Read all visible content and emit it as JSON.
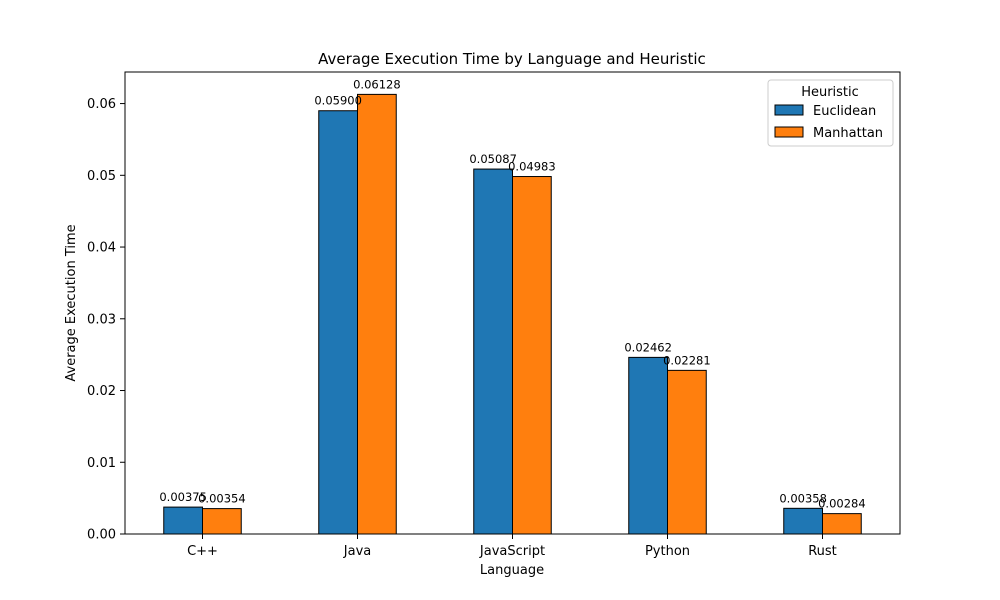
{
  "chart_data": {
    "type": "bar",
    "title": "Average Execution Time by Language and Heuristic",
    "xlabel": "Language",
    "ylabel": "Average Execution Time",
    "categories": [
      "C++",
      "Java",
      "JavaScript",
      "Python",
      "Rust"
    ],
    "series": [
      {
        "name": "Euclidean",
        "color": "#1f77b4",
        "values": [
          0.00375,
          0.059,
          0.05087,
          0.02462,
          0.00358
        ],
        "labels": [
          "0.00375",
          "0.05900",
          "0.05087",
          "0.02462",
          "0.00358"
        ]
      },
      {
        "name": "Manhattan",
        "color": "#ff7f0e",
        "values": [
          0.00354,
          0.06128,
          0.04983,
          0.02281,
          0.00284
        ],
        "labels": [
          "0.00354",
          "0.06128",
          "0.04983",
          "0.02281",
          "0.00284"
        ]
      }
    ],
    "ylim": [
      0,
      0.0644
    ],
    "yticks": [
      0.0,
      0.01,
      0.02,
      0.03,
      0.04,
      0.05,
      0.06
    ],
    "ytick_labels": [
      "0.00",
      "0.01",
      "0.02",
      "0.03",
      "0.04",
      "0.05",
      "0.06"
    ],
    "grid": false,
    "legend": {
      "title": "Heuristic",
      "position": "top-right"
    }
  }
}
